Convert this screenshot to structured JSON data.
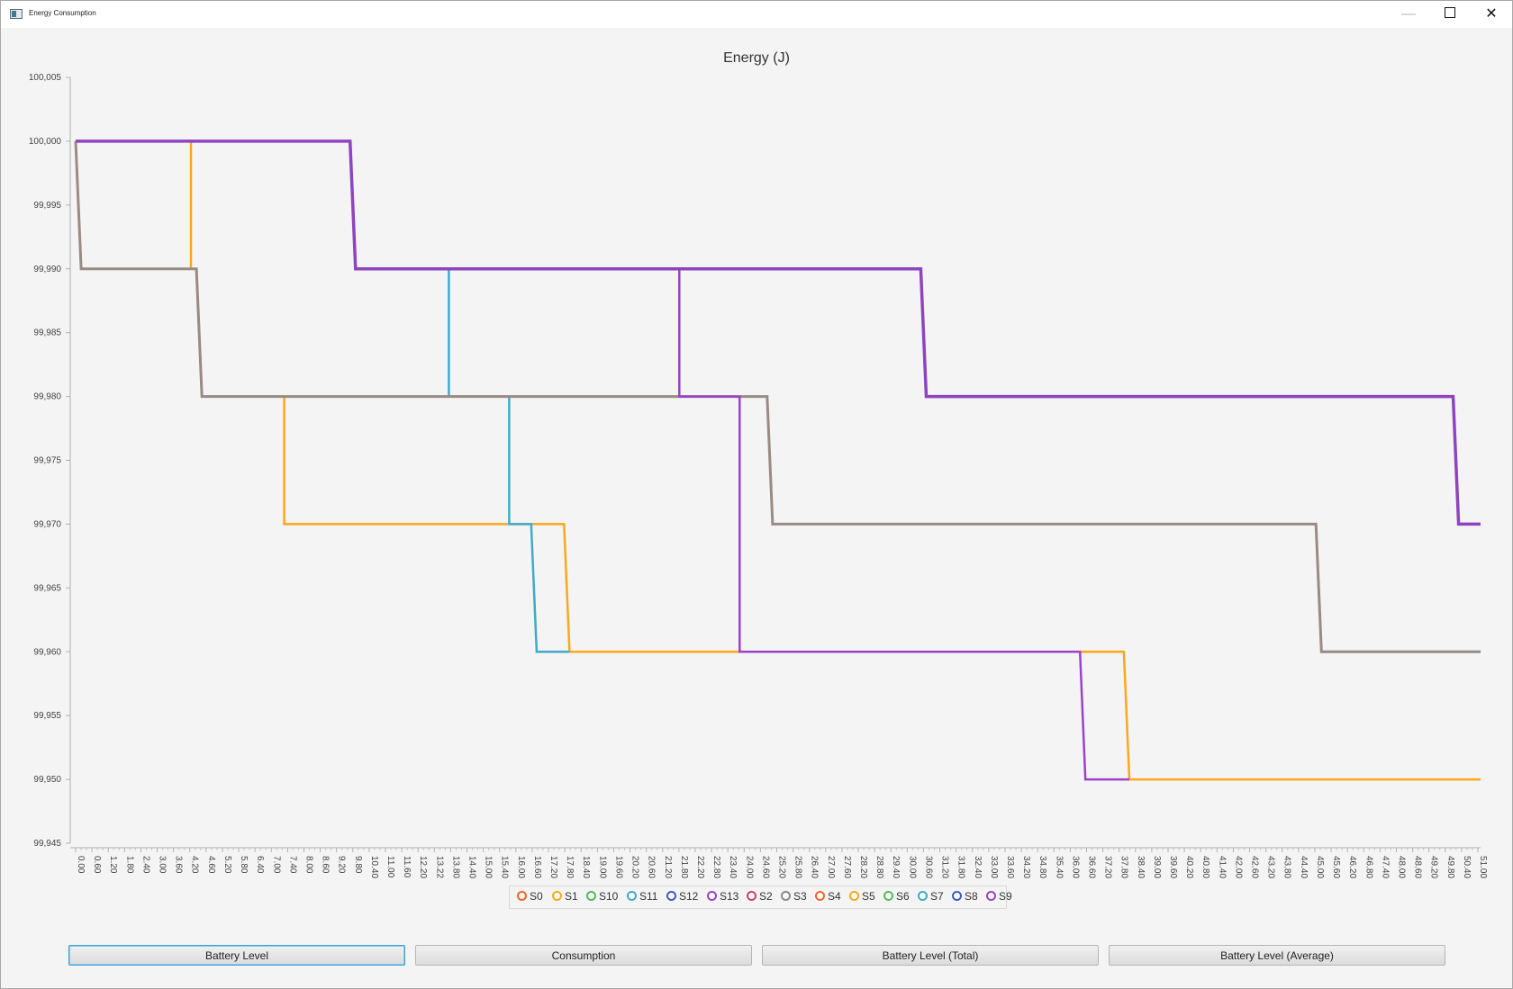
{
  "window": {
    "title": "Energy Consumption"
  },
  "chart_data": {
    "type": "line",
    "title": "Energy (J)",
    "xlabel": "",
    "ylabel": "",
    "ylim": [
      99945,
      100005
    ],
    "xlim": [
      0,
      51.2
    ],
    "y_ticks": [
      "100,005",
      "100,000",
      "99,995",
      "99,990",
      "99,985",
      "99,980",
      "99,975",
      "99,970",
      "99,965",
      "99,960",
      "99,955",
      "99,950",
      "99,945"
    ],
    "x_ticks": [
      "0.00",
      "0.60",
      "1.20",
      "1.80",
      "2.40",
      "3.00",
      "3.60",
      "4.20",
      "4.60",
      "5.20",
      "5.80",
      "6.40",
      "7.00",
      "7.40",
      "8.00",
      "8.60",
      "9.20",
      "9.80",
      "10.40",
      "11.00",
      "11.60",
      "12.20",
      "13.22",
      "13.80",
      "14.40",
      "15.00",
      "15.40",
      "16.00",
      "16.60",
      "17.20",
      "17.80",
      "18.40",
      "19.00",
      "19.60",
      "20.20",
      "20.60",
      "21.20",
      "21.80",
      "22.20",
      "22.80",
      "23.40",
      "24.00",
      "24.60",
      "25.20",
      "25.80",
      "26.40",
      "27.00",
      "27.60",
      "28.20",
      "28.80",
      "29.40",
      "30.00",
      "30.60",
      "31.20",
      "31.80",
      "32.40",
      "33.00",
      "33.60",
      "34.20",
      "34.80",
      "35.40",
      "36.00",
      "36.60",
      "37.20",
      "37.80",
      "38.40",
      "39.00",
      "39.60",
      "40.20",
      "40.80",
      "41.40",
      "42.00",
      "42.60",
      "43.20",
      "43.80",
      "44.40",
      "45.00",
      "45.60",
      "46.20",
      "46.80",
      "47.40",
      "48.00",
      "48.60",
      "49.20",
      "49.80",
      "50.40",
      "51.00"
    ],
    "legend_position": "bottom",
    "legend": [
      {
        "name": "S0",
        "color": "#f3622d"
      },
      {
        "name": "S1",
        "color": "#fba71b"
      },
      {
        "name": "S10",
        "color": "#57b757"
      },
      {
        "name": "S11",
        "color": "#41a9c9"
      },
      {
        "name": "S12",
        "color": "#4258c9"
      },
      {
        "name": "S13",
        "color": "#9a42c8"
      },
      {
        "name": "S2",
        "color": "#c84164"
      },
      {
        "name": "S3",
        "color": "#888888"
      },
      {
        "name": "S4",
        "color": "#f3622d"
      },
      {
        "name": "S5",
        "color": "#fba71b"
      },
      {
        "name": "S6",
        "color": "#57b757"
      },
      {
        "name": "S7",
        "color": "#41a9c9"
      },
      {
        "name": "S8",
        "color": "#4258c9"
      },
      {
        "name": "S9",
        "color": "#9a42c8"
      }
    ],
    "series": [
      {
        "name": "S1",
        "color": "#fba71b",
        "width": 2.5,
        "points": [
          [
            0,
            100000
          ],
          [
            4.2,
            100000
          ],
          [
            4.2,
            99990
          ],
          [
            4.4,
            99990
          ],
          [
            4.6,
            99980
          ],
          [
            7.6,
            99980
          ],
          [
            7.6,
            99970
          ],
          [
            17.8,
            99970
          ],
          [
            18.0,
            99960
          ],
          [
            38.2,
            99960
          ],
          [
            38.4,
            99950
          ],
          [
            51.2,
            99950
          ]
        ]
      },
      {
        "name": "S11",
        "color": "#41a9c9",
        "width": 2.5,
        "points": [
          [
            13.6,
            99990
          ],
          [
            13.6,
            99980
          ],
          [
            15.8,
            99980
          ],
          [
            15.8,
            99970
          ],
          [
            16.6,
            99970
          ],
          [
            16.8,
            99960
          ],
          [
            18.0,
            99960
          ]
        ]
      },
      {
        "name": "S3",
        "color": "#998a84",
        "width": 3,
        "points": [
          [
            0,
            100000
          ],
          [
            0.2,
            99990
          ],
          [
            4.4,
            99990
          ],
          [
            4.6,
            99980
          ],
          [
            25.2,
            99980
          ],
          [
            25.4,
            99970
          ],
          [
            45.2,
            99970
          ],
          [
            45.4,
            99960
          ],
          [
            51.2,
            99960
          ]
        ]
      },
      {
        "name": "S13",
        "color": "#9a42c8",
        "width": 2.5,
        "points": [
          [
            22.0,
            99990
          ],
          [
            22.0,
            99980
          ],
          [
            24.2,
            99980
          ],
          [
            24.2,
            99960
          ],
          [
            36.6,
            99960
          ],
          [
            36.8,
            99950
          ],
          [
            38.4,
            99950
          ]
        ]
      },
      {
        "name": "S9",
        "color": "#8e44c0",
        "width": 3.5,
        "points": [
          [
            0,
            100000
          ],
          [
            10.0,
            100000
          ],
          [
            10.2,
            99990
          ],
          [
            30.8,
            99990
          ],
          [
            31.0,
            99980
          ],
          [
            50.2,
            99980
          ],
          [
            50.4,
            99970
          ],
          [
            51.2,
            99970
          ]
        ]
      }
    ]
  },
  "buttons": {
    "battery_level": "Battery Level",
    "consumption": "Consumption",
    "battery_level_total": "Battery Level (Total)",
    "battery_level_average": "Battery Level (Average)"
  }
}
